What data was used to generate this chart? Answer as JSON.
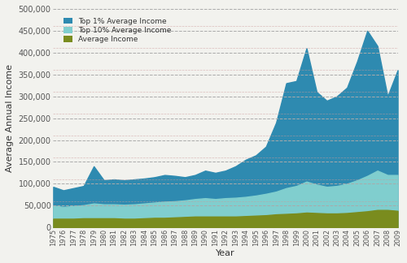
{
  "years": [
    1975,
    1976,
    1977,
    1978,
    1979,
    1980,
    1981,
    1982,
    1983,
    1984,
    1985,
    1986,
    1987,
    1988,
    1989,
    1990,
    1991,
    1992,
    1993,
    1994,
    1995,
    1996,
    1997,
    1998,
    1999,
    2000,
    2001,
    2002,
    2003,
    2004,
    2005,
    2006,
    2007,
    2008,
    2009
  ],
  "top1_income": [
    93000,
    85000,
    90000,
    95000,
    140000,
    108000,
    110000,
    108000,
    110000,
    112000,
    115000,
    120000,
    118000,
    115000,
    120000,
    130000,
    125000,
    130000,
    140000,
    155000,
    165000,
    185000,
    240000,
    330000,
    335000,
    410000,
    310000,
    290000,
    300000,
    320000,
    380000,
    450000,
    415000,
    300000,
    360000
  ],
  "top10_income": [
    50000,
    47000,
    49000,
    51000,
    55000,
    53000,
    53000,
    52000,
    53000,
    55000,
    57000,
    59000,
    60000,
    62000,
    65000,
    67000,
    65000,
    67000,
    68000,
    70000,
    73000,
    77000,
    82000,
    90000,
    95000,
    105000,
    98000,
    93000,
    95000,
    100000,
    108000,
    118000,
    130000,
    120000,
    120000
  ],
  "avg_income": [
    20000,
    20000,
    20000,
    21000,
    21000,
    21000,
    21000,
    20000,
    20000,
    21000,
    22000,
    22000,
    23000,
    24000,
    25000,
    25000,
    25000,
    25000,
    25000,
    26000,
    27000,
    28000,
    30000,
    31000,
    32000,
    34000,
    33000,
    32000,
    32000,
    33000,
    35000,
    37000,
    40000,
    40000,
    38000
  ],
  "top1_color": "#2e8ab0",
  "top10_color": "#80cece",
  "avg_color": "#7a8c1e",
  "bg_color": "#f2f2ee",
  "xlabel": "Year",
  "ylabel": "Average Annual Income",
  "ylim": [
    0,
    500000
  ],
  "yticks": [
    0,
    50000,
    100000,
    150000,
    200000,
    250000,
    300000,
    350000,
    400000,
    450000,
    500000
  ],
  "grid_color_dark": "#aaaaaa",
  "grid_color_pink": "#cc9999",
  "legend_labels": [
    "Top 1% Average Income",
    "Top 10% Average Income",
    "Average Income"
  ]
}
